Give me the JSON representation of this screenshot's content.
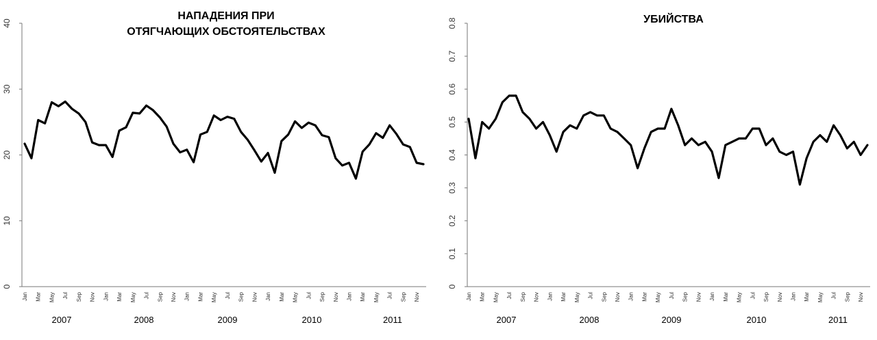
{
  "chart_data": [
    {
      "type": "line",
      "title_lines": [
        "НАПАДЕНИЯ ПРИ",
        "ОТЯГЧАЮЩИХ ОБСТОЯТЕЛЬСТВАХ"
      ],
      "ylim": [
        0,
        40
      ],
      "yticks": [
        "0",
        "10",
        "20",
        "30",
        "40"
      ],
      "month_labels": [
        "Jan",
        "Mar",
        "May",
        "Jul",
        "Sep",
        "Nov",
        "Jan",
        "Mar",
        "May",
        "Jul",
        "Sep",
        "Nov",
        "Jan",
        "Mar",
        "May",
        "Jul",
        "Sep",
        "Nov",
        "Jan",
        "Mar",
        "May",
        "Jul",
        "Sep",
        "Nov",
        "Jan",
        "Mar",
        "May",
        "Jul",
        "Sep",
        "Nov"
      ],
      "years": [
        "2007",
        "2008",
        "2009",
        "2010",
        "2011"
      ],
      "grid": false,
      "series": [
        {
          "values": [
            21.7,
            19.5,
            25.3,
            24.8,
            28.0,
            27.4,
            28.1,
            27.0,
            26.3,
            25.0,
            21.9,
            21.5,
            21.5,
            19.7,
            23.7,
            24.2,
            26.4,
            26.3,
            27.5,
            26.8,
            25.7,
            24.3,
            21.7,
            20.4,
            20.8,
            18.9,
            23.1,
            23.5,
            26.0,
            25.3,
            25.8,
            25.5,
            23.5,
            22.3,
            20.7,
            19.0,
            20.3,
            17.3,
            22.1,
            23.1,
            25.1,
            24.1,
            24.9,
            24.5,
            23.0,
            22.7,
            19.5,
            18.4,
            18.8,
            16.4,
            20.5,
            21.6,
            23.3,
            22.6,
            24.5,
            23.2,
            21.6,
            21.2,
            18.8,
            18.6
          ]
        }
      ]
    },
    {
      "type": "line",
      "title_lines": [
        "УБИЙСТВА"
      ],
      "ylim": [
        0,
        0.8
      ],
      "yticks": [
        "0",
        "0.1",
        "0.2",
        "0.3",
        "0.4",
        "0.5",
        "0.6",
        "0.7",
        "0.8"
      ],
      "month_labels": [
        "Jan",
        "Mar",
        "May",
        "Jul",
        "Sep",
        "Nov",
        "Jan",
        "Mar",
        "May",
        "Jul",
        "Sep",
        "Nov",
        "Jan",
        "Mar",
        "May",
        "Jul",
        "Sep",
        "Nov",
        "Jan",
        "Mar",
        "May",
        "Jul",
        "Sep",
        "Nov",
        "Jan",
        "Mar",
        "May",
        "Jul",
        "Sep",
        "Nov"
      ],
      "years": [
        "2007",
        "2008",
        "2009",
        "2010",
        "2011"
      ],
      "grid": false,
      "series": [
        {
          "values": [
            0.51,
            0.39,
            0.5,
            0.48,
            0.51,
            0.56,
            0.58,
            0.58,
            0.53,
            0.51,
            0.48,
            0.5,
            0.46,
            0.41,
            0.47,
            0.49,
            0.48,
            0.52,
            0.53,
            0.52,
            0.52,
            0.48,
            0.47,
            0.45,
            0.43,
            0.36,
            0.42,
            0.47,
            0.48,
            0.48,
            0.54,
            0.49,
            0.43,
            0.45,
            0.43,
            0.44,
            0.41,
            0.33,
            0.43,
            0.44,
            0.45,
            0.45,
            0.48,
            0.48,
            0.43,
            0.45,
            0.41,
            0.4,
            0.41,
            0.31,
            0.39,
            0.44,
            0.46,
            0.44,
            0.49,
            0.46,
            0.42,
            0.44,
            0.4,
            0.43
          ]
        }
      ]
    }
  ]
}
